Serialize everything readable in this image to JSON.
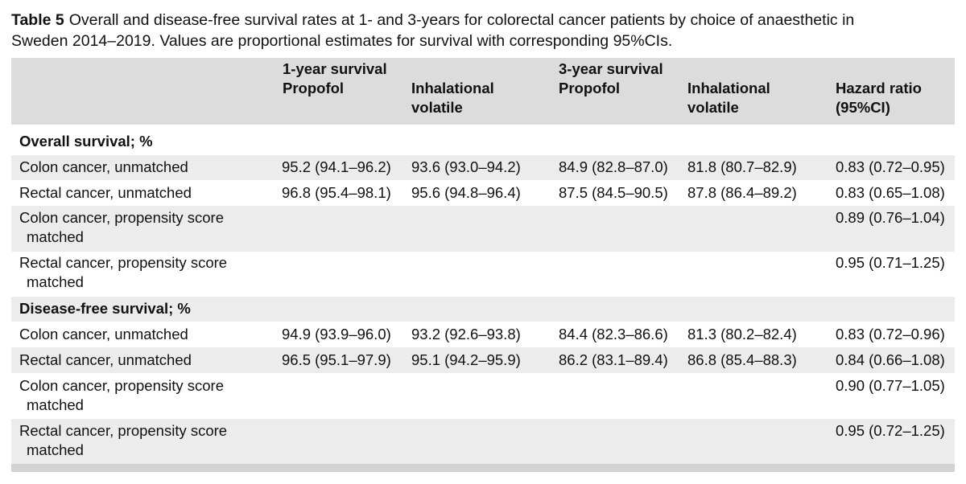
{
  "caption": {
    "label": "Table 5",
    "line1": "Overall and disease-free survival rates at 1- and 3-years for colorectal cancer patients by choice of anaesthetic in",
    "line2": "Sweden 2014–2019. Values are proportional estimates for survival with corresponding 95%CIs."
  },
  "header": {
    "group1": "1-year survival",
    "group2": "3-year survival",
    "propofol": "Propofol",
    "inhal_1": "Inhalational",
    "inhal_2": "volatile",
    "hr_1": "Hazard ratio",
    "hr_2": "(95%CI)"
  },
  "sections": {
    "overall": "Overall survival; %",
    "disease_free": "Disease-free survival; %"
  },
  "rows": {
    "os_colon_unm": {
      "label": "Colon cancer, unmatched",
      "p1": "95.2 (94.1–96.2)",
      "i1": "93.6 (93.0–94.2)",
      "p3": "84.9 (82.8–87.0)",
      "i3": "81.8 (80.7–82.9)",
      "hr": "0.83 (0.72–0.95)"
    },
    "os_rectal_unm": {
      "label": "Rectal cancer, unmatched",
      "p1": "96.8 (95.4–98.1)",
      "i1": "95.6 (94.8–96.4)",
      "p3": "87.5 (84.5–90.5)",
      "i3": "87.8 (86.4–89.2)",
      "hr": "0.83 (0.65–1.08)"
    },
    "os_colon_psm": {
      "label1": "Colon cancer, propensity score",
      "label2": "matched",
      "hr": "0.89 (0.76–1.04)"
    },
    "os_rectal_psm": {
      "label1": "Rectal cancer, propensity score",
      "label2": "matched",
      "hr": "0.95 (0.71–1.25)"
    },
    "dfs_colon_unm": {
      "label": "Colon cancer, unmatched",
      "p1": "94.9 (93.9–96.0)",
      "i1": "93.2 (92.6–93.8)",
      "p3": "84.4 (82.3–86.6)",
      "i3": "81.3 (80.2–82.4)",
      "hr": "0.83 (0.72–0.96)"
    },
    "dfs_rectal_unm": {
      "label": "Rectal cancer, unmatched",
      "p1": "96.5 (95.1–97.9)",
      "i1": "95.1 (94.2–95.9)",
      "p3": "86.2 (83.1–89.4)",
      "i3": "86.8 (85.4–88.3)",
      "hr": "0.84 (0.66–1.08)"
    },
    "dfs_colon_psm": {
      "label1": "Colon cancer, propensity score",
      "label2": "matched",
      "hr": "0.90 (0.77–1.05)"
    },
    "dfs_rectal_psm": {
      "label1": "Rectal cancer, propensity score",
      "label2": "matched",
      "hr": "0.95 (0.72–1.25)"
    }
  },
  "colors": {
    "header_bg": "#dcdcdc",
    "row_shade": "#ececec",
    "rule": "#d3d3d3"
  }
}
